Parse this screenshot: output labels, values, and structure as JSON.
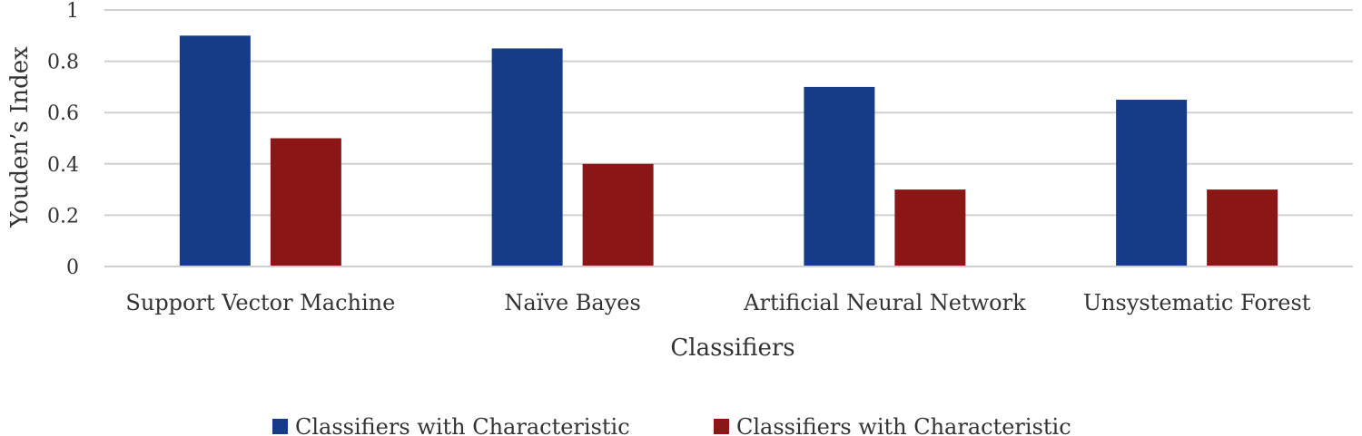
{
  "chart_data": {
    "type": "bar",
    "categories": [
      "Support Vector Machine",
      "Naïve Bayes",
      "Artificial Neural Network",
      "Unsystematic Forest"
    ],
    "series": [
      {
        "name": "Classifiers with Characteristic",
        "values": [
          0.9,
          0.85,
          0.7,
          0.65
        ],
        "color": "#163b87"
      },
      {
        "name": "Classifiers with Characteristic",
        "values": [
          0.5,
          0.4,
          0.3,
          0.3
        ],
        "color": "#8b1616"
      }
    ],
    "title": "",
    "xlabel": "Classifiers",
    "ylabel": "Youden’s Index",
    "ylim": [
      0,
      1
    ],
    "yticks": [
      "0",
      "0.2",
      "0.4",
      "0.6",
      "0.8",
      "1"
    ],
    "grid": true,
    "legend_position": "bottom"
  }
}
